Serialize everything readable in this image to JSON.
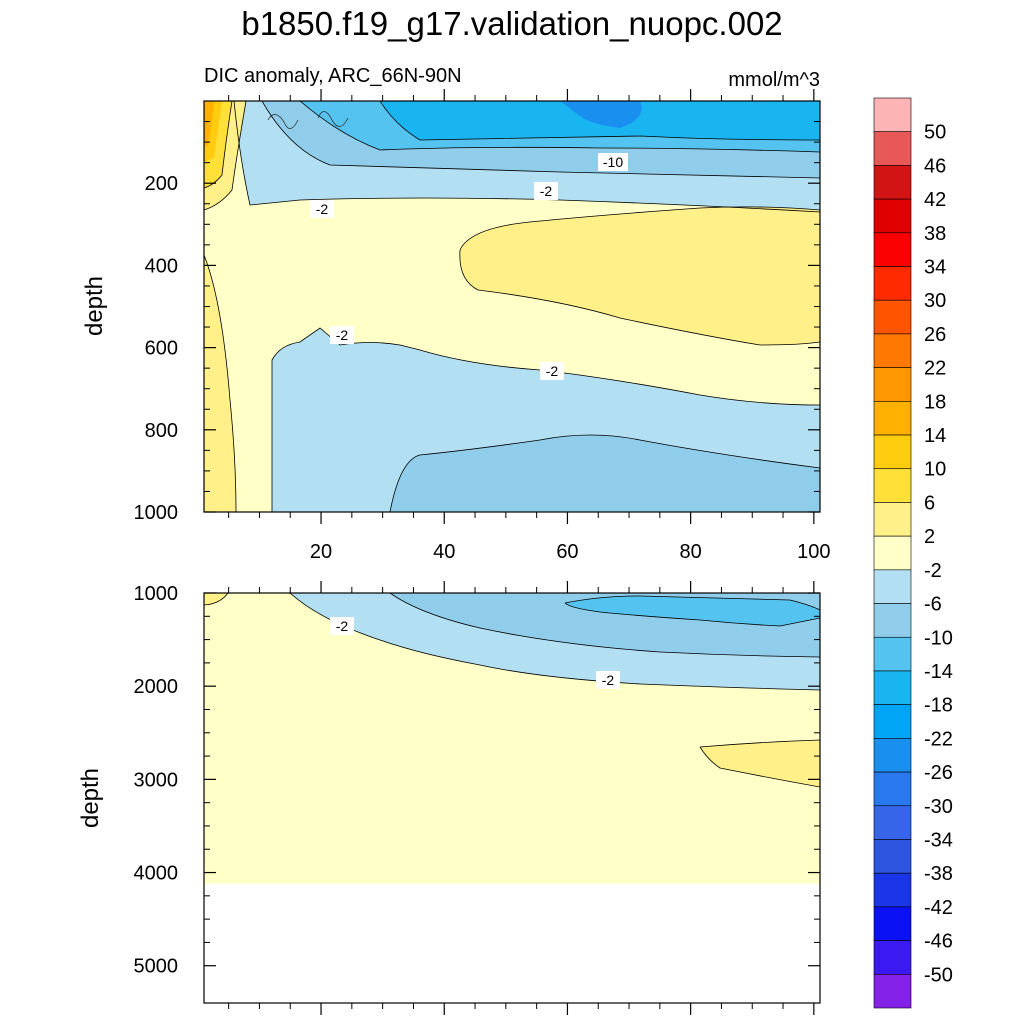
{
  "figure": {
    "title": "b1850.f19_g17.validation_nuopc.002",
    "subtitle_left": "DIC anomaly, ARC_66N-90N",
    "subtitle_right": "mmol/m^3"
  },
  "chart_data": [
    {
      "type": "contour",
      "panel": "upper",
      "x": [
        20,
        40,
        60,
        80,
        100
      ],
      "x_tick_labels": [
        "20",
        "40",
        "60",
        "80",
        "100"
      ],
      "xlim": [
        1,
        101
      ],
      "ylabel": "depth",
      "y_ticks": [
        200,
        400,
        600,
        800,
        1000
      ],
      "ylim": [
        0,
        1000
      ],
      "y_reversed": true,
      "contour_labels": [
        "-10",
        "-2",
        "-2",
        "-2",
        "-2"
      ],
      "regions": [
        {
          "level": "-10 to -6",
          "color": "#8fcdeb",
          "description": "deep blue band below 800 m right of x≈30"
        },
        {
          "level": "-6 to -2",
          "color": "#b3dff3",
          "description": "blue band 600–1000 m right of x≈12"
        },
        {
          "level": "-2 to 2",
          "color": "#ffffc8",
          "description": "background"
        },
        {
          "level": "2 to 6",
          "color": "#fff08a",
          "description": "positive tongue 250–600 m right of x≈42 and near-surface left edge"
        },
        {
          "level": "-22 to -10",
          "color": "#19b5f0",
          "description": "strong negative anomaly near the surface, upper 100 m"
        }
      ]
    },
    {
      "type": "contour",
      "panel": "lower",
      "x_tick_labels": [],
      "xlim": [
        1,
        101
      ],
      "ylabel": "depth",
      "y_ticks": [
        1000,
        2000,
        3000,
        4000,
        5000
      ],
      "ylim": [
        1000,
        5400
      ],
      "y_reversed": true,
      "contour_labels": [
        "-2",
        "-2"
      ],
      "no_data_below": 4120,
      "regions": [
        {
          "level": "-6 to -2",
          "color": "#b3dff3",
          "description": "band 1000–2000 m right of x≈15"
        },
        {
          "level": "-10 to -6",
          "color": "#8fcdeb",
          "description": "band 1000–1700 m right of x≈32"
        },
        {
          "level": "-14 to -10",
          "color": "#55c3ef",
          "description": "core 1000–1350 m right of x≈60"
        },
        {
          "level": "2 to 6",
          "color": "#fff08a",
          "description": "positive wedge near 2600–3000 m right of x≈82"
        }
      ]
    }
  ],
  "colorbar": {
    "levels": [
      "50",
      "46",
      "42",
      "38",
      "34",
      "30",
      "26",
      "22",
      "18",
      "14",
      "10",
      "6",
      "2",
      "-2",
      "-6",
      "-10",
      "-14",
      "-18",
      "-22",
      "-26",
      "-30",
      "-34",
      "-38",
      "-42",
      "-46",
      "-50"
    ],
    "colors": [
      "#fcb4b4",
      "#e85858",
      "#d21414",
      "#e00000",
      "#fa0000",
      "#ff2a00",
      "#ff5400",
      "#ff7800",
      "#ff9800",
      "#ffb000",
      "#ffcc10",
      "#ffe038",
      "#fff08a",
      "#ffffc8",
      "#b3dff3",
      "#8fcdeb",
      "#55c3ef",
      "#19b5f0",
      "#00a5f5",
      "#1990f0",
      "#2a78ee",
      "#3665ea",
      "#2e55e0",
      "#1a35e8",
      "#0a12f5",
      "#3a1af0",
      "#8422ea"
    ]
  }
}
